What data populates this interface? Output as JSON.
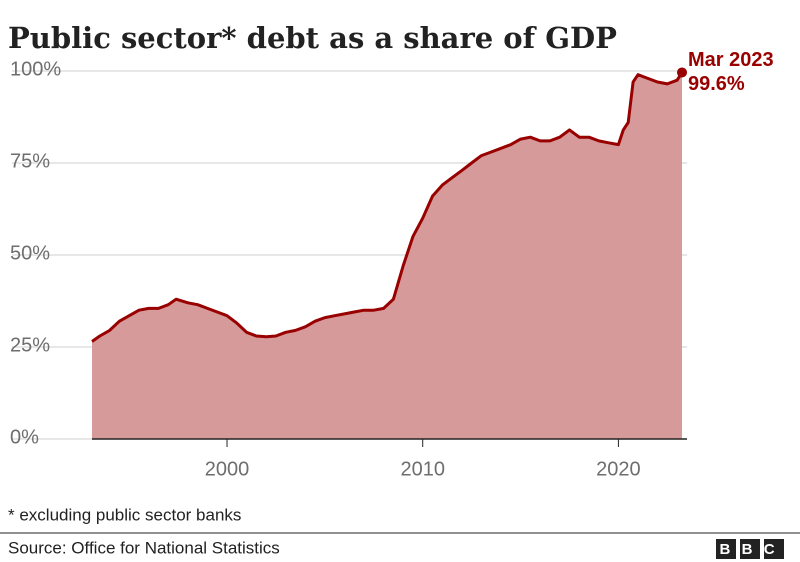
{
  "chart_data": {
    "type": "area",
    "title": "Public sector* debt as a share of GDP",
    "footnote": "* excluding public sector banks",
    "source": "Source: Office for National Statistics",
    "logo": "BBC",
    "x": [
      1993.1,
      1993.5,
      1994,
      1994.5,
      1995,
      1995.5,
      1996,
      1996.5,
      1997,
      1997.4,
      1998,
      1998.5,
      1999,
      1999.5,
      2000,
      2000.5,
      2001,
      2001.5,
      2002,
      2002.5,
      2003,
      2003.5,
      2004,
      2004.5,
      2005,
      2005.5,
      2006,
      2006.5,
      2007,
      2007.5,
      2008,
      2008.5,
      2009,
      2009.5,
      2010,
      2010.5,
      2011,
      2011.5,
      2012,
      2012.5,
      2013,
      2013.5,
      2014,
      2014.5,
      2015,
      2015.5,
      2016,
      2016.5,
      2017,
      2017.5,
      2018,
      2018.5,
      2019,
      2019.5,
      2020,
      2020.25,
      2020.5,
      2020.75,
      2021,
      2021.5,
      2022,
      2022.5,
      2023,
      2023.25
    ],
    "series": [
      {
        "color": "#990000",
        "fill": "#d69a9a",
        "values": [
          26.5,
          28,
          29.5,
          32,
          33.5,
          35,
          35.5,
          35.5,
          36.5,
          38,
          37,
          36.5,
          35.5,
          34.5,
          33.5,
          31.5,
          29,
          28,
          27.8,
          28,
          29,
          29.5,
          30.5,
          32,
          33,
          33.5,
          34,
          34.5,
          35,
          35,
          35.5,
          38,
          47,
          55,
          60,
          66,
          69,
          71,
          73,
          75,
          77,
          78,
          79,
          80,
          81.5,
          82,
          81,
          81,
          82,
          84,
          82,
          82,
          81,
          80.5,
          80,
          84,
          86,
          97,
          99,
          98,
          97,
          96.5,
          97.5,
          99.6
        ],
        "end_label": {
          "date": "Mar 2023",
          "value": "99.6%"
        }
      }
    ],
    "xlim": [
      1993.1,
      2023.25
    ],
    "xticks": [
      2000,
      2010,
      2020
    ],
    "ylim": [
      0,
      100
    ],
    "yticks": [
      {
        "value": 0,
        "label": "0%"
      },
      {
        "value": 25,
        "label": "25%"
      },
      {
        "value": 50,
        "label": "50%"
      },
      {
        "value": 75,
        "label": "75%"
      },
      {
        "value": 100,
        "label": "100%"
      }
    ],
    "grid": true
  }
}
